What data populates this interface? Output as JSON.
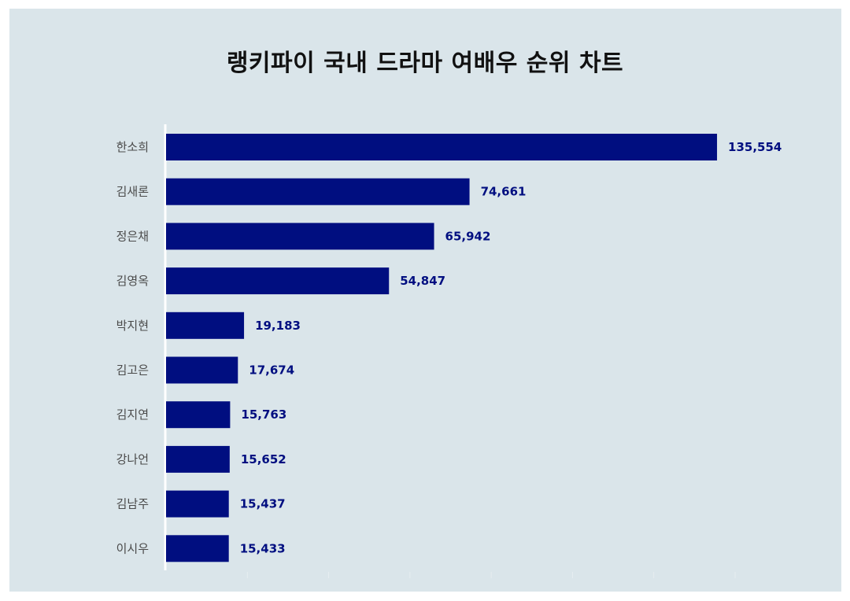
{
  "chart_data": {
    "type": "bar",
    "orientation": "horizontal",
    "title": "랭키파이 국내 드라마 여배우 순위 차트",
    "categories": [
      "한소희",
      "김새론",
      "정은채",
      "김영옥",
      "박지현",
      "김고은",
      "김지연",
      "강나언",
      "김남주",
      "이시우"
    ],
    "values": [
      135554,
      74661,
      65942,
      54847,
      19183,
      17674,
      15763,
      15652,
      15437,
      15433
    ],
    "value_labels": [
      "135,554",
      "74,661",
      "65,942",
      "54,847",
      "19,183",
      "17,674",
      "15,763",
      "15,652",
      "15,437",
      "15,433"
    ],
    "xlim": [
      0,
      140000
    ],
    "grid": false,
    "legend": "none",
    "bar_color": "#000e80",
    "label_color": "#000e80",
    "background_color": "#dae5ea"
  }
}
